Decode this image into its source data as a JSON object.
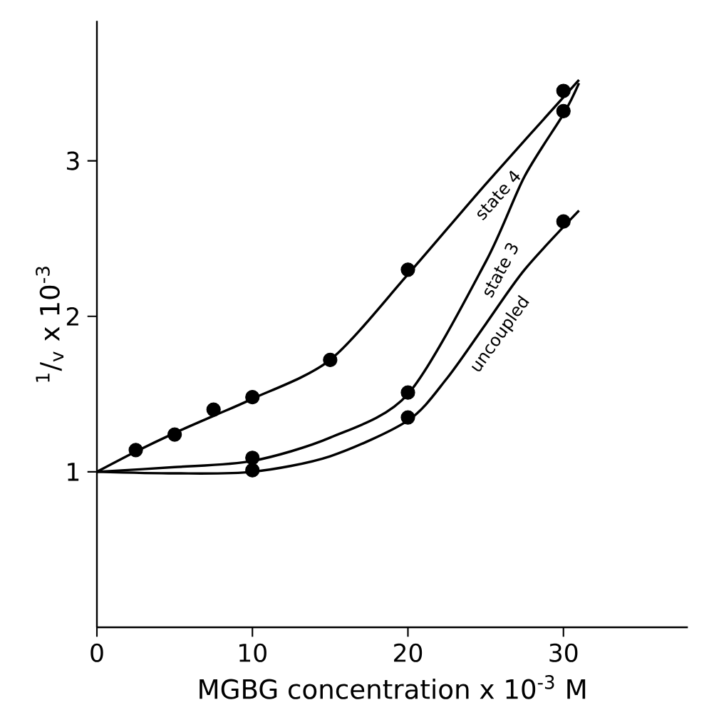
{
  "chart_data": {
    "type": "line",
    "xlabel": "MGBG concentration x 10$^{-3}$ M",
    "ylabel": "$^{1}$/$_{v}$ x 10$^{-3}$",
    "xlim": [
      0,
      38
    ],
    "ylim": [
      0,
      3.9
    ],
    "xticks": [
      0,
      10,
      20,
      30
    ],
    "yticks": [
      1,
      2,
      3
    ],
    "grid": false,
    "legend": false,
    "series": [
      {
        "name": "state 4",
        "marker": "none",
        "color": "#000000",
        "x": [
          0,
          2.5,
          5,
          7.5,
          10,
          15,
          20,
          25,
          31
        ],
        "values": [
          1,
          1.13,
          1.25,
          1.36,
          1.47,
          1.72,
          2.27,
          2.85,
          3.52
        ]
      },
      {
        "name": "state 3",
        "marker": "none",
        "color": "#000000",
        "x": [
          0,
          5,
          10,
          15,
          20,
          25,
          27.5,
          30,
          31
        ],
        "values": [
          1,
          1.03,
          1.07,
          1.22,
          1.5,
          2.35,
          2.9,
          3.3,
          3.5
        ]
      },
      {
        "name": "uncoupled",
        "marker": "none",
        "color": "#000000",
        "x": [
          0,
          5,
          10,
          15,
          20,
          22.5,
          25,
          27.5,
          31
        ],
        "values": [
          1,
          0.99,
          1.0,
          1.1,
          1.33,
          1.6,
          1.95,
          2.3,
          2.68
        ]
      },
      {
        "type": "scatter",
        "marker": "circle",
        "color": "#000000",
        "x": [
          2.5,
          5,
          7.5,
          10,
          15,
          20,
          30
        ],
        "values": [
          1.14,
          1.24,
          1.4,
          1.48,
          1.72,
          2.3,
          3.45
        ]
      },
      {
        "type": "scatter",
        "marker": "circle",
        "color": "#000000",
        "x": [
          10,
          20,
          30
        ],
        "values": [
          1.09,
          1.51,
          3.32
        ]
      },
      {
        "type": "scatter",
        "marker": "circle",
        "color": "#000000",
        "x": [
          10,
          20,
          30
        ],
        "values": [
          1.01,
          1.35,
          2.61
        ]
      }
    ]
  }
}
